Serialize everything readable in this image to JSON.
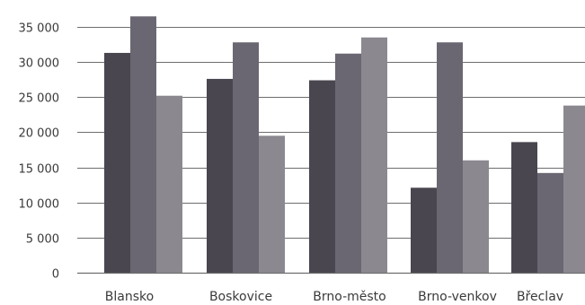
{
  "chart_data": {
    "type": "bar",
    "categories": [
      "Blansko",
      "Boskovice",
      "Brno-město",
      "Brno-venkov",
      "Břeclav"
    ],
    "series": [
      {
        "values": [
          31300,
          27600,
          27400,
          12100,
          18600
        ]
      },
      {
        "values": [
          36500,
          32800,
          31200,
          32800,
          14200
        ]
      },
      {
        "values": [
          25200,
          19500,
          33500,
          16000,
          23800
        ]
      }
    ],
    "ylim": [
      0,
      35000
    ],
    "y_ticks": [
      0,
      5000,
      10000,
      15000,
      20000,
      25000,
      30000,
      35000
    ],
    "y_tick_labels": [
      "0",
      "5 000",
      "10 000",
      "15 000",
      "20 000",
      "25 000",
      "30 000",
      "35 000"
    ],
    "grid": true,
    "xlabel": "",
    "ylabel": "",
    "colors": [
      "#4a4650",
      "#6b6772",
      "#8b8890"
    ],
    "grid_color": "#6e6e6e"
  }
}
